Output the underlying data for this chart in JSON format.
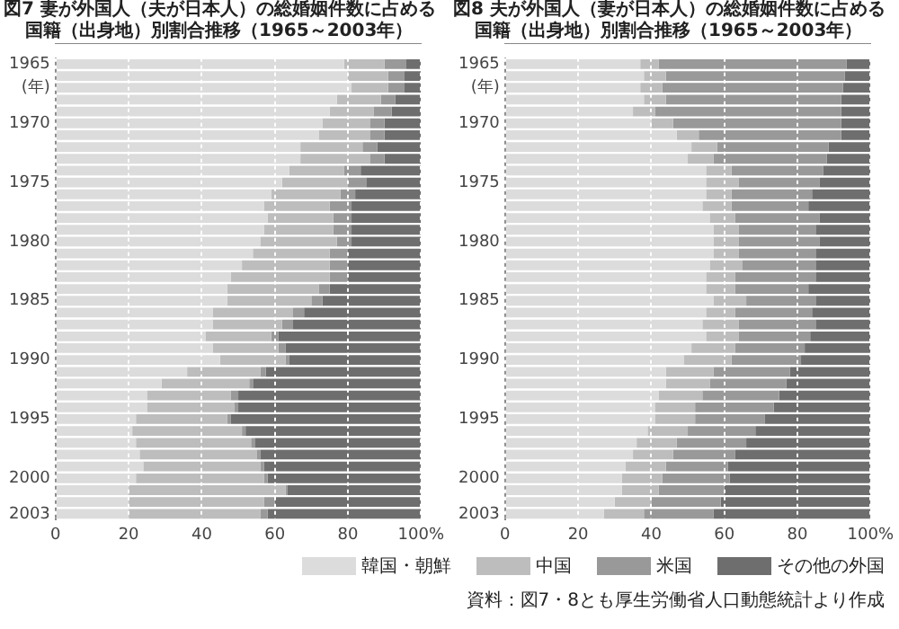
{
  "chart_data": [
    {
      "type": "bar",
      "orientation": "horizontal",
      "stacked": true,
      "title": "図7 妻が外国人（夫が日本人）の総婚姻件数に占める",
      "subtitle": "国籍（出身地）別割合推移（1965～2003年）",
      "categories": [
        "1965",
        null,
        "(年)",
        null,
        null,
        "1970",
        null,
        null,
        null,
        null,
        "1975",
        null,
        null,
        null,
        null,
        "1980",
        null,
        null,
        null,
        null,
        "1985",
        null,
        null,
        null,
        null,
        "1990",
        null,
        null,
        null,
        null,
        "1995",
        null,
        null,
        null,
        null,
        "2000",
        null,
        null,
        "2003"
      ],
      "series": [
        {
          "name": "韓国・朝鮮",
          "color": "#dcdcdc",
          "values": [
            79,
            80,
            81,
            77,
            75,
            73,
            72,
            67,
            67,
            64,
            62,
            59,
            57,
            58,
            57,
            56,
            54,
            51,
            48,
            47,
            47,
            43,
            43,
            41,
            43,
            45,
            36,
            29,
            25,
            25,
            22,
            21,
            22,
            23,
            24,
            22,
            20,
            20,
            20
          ]
        },
        {
          "name": "中国",
          "color": "#bdbdbd",
          "values": [
            11,
            11,
            10,
            12,
            12,
            13,
            14,
            17,
            19,
            15,
            18,
            19,
            18,
            18,
            19,
            21,
            21,
            24,
            27,
            25,
            23,
            22,
            19,
            18,
            18,
            18,
            20,
            24,
            23,
            24,
            25,
            30,
            31.5,
            32,
            32,
            35,
            43,
            37,
            36
          ]
        },
        {
          "name": "米国",
          "color": "#999999",
          "values": [
            6,
            4.5,
            4.5,
            4,
            5,
            4,
            4,
            4,
            4,
            4.5,
            5,
            4,
            6,
            5,
            5,
            4,
            5,
            5,
            5,
            3,
            3,
            3,
            3,
            2,
            2,
            1,
            1.5,
            1,
            2,
            1,
            1,
            1,
            1,
            1,
            1,
            1,
            0.5,
            3,
            2
          ]
        },
        {
          "name": "その他の外国",
          "color": "#6e6e6e",
          "values": [
            4,
            4.5,
            4.5,
            7,
            8,
            10,
            10,
            12,
            10,
            16.5,
            15,
            18,
            19,
            19,
            19,
            19,
            20,
            20,
            20,
            25,
            27,
            32,
            35,
            39,
            37,
            36,
            42.5,
            46,
            50,
            50,
            52,
            48,
            45.5,
            44,
            43,
            42,
            36.5,
            40,
            42
          ]
        }
      ],
      "xlim": [
        0,
        100
      ],
      "xticks": [
        0,
        20,
        40,
        60,
        80,
        {
          "value": 100,
          "label": "100%"
        }
      ],
      "grid": "x",
      "legend": "bottom"
    },
    {
      "type": "bar",
      "orientation": "horizontal",
      "stacked": true,
      "title": "図8 夫が外国人（妻が日本人）の総婚姻件数に占める",
      "subtitle": "国籍（出身地）別割合推移（1965～2003年）",
      "categories": [
        "1965",
        null,
        "(年)",
        null,
        null,
        "1970",
        null,
        null,
        null,
        null,
        "1975",
        null,
        null,
        null,
        null,
        "1980",
        null,
        null,
        null,
        null,
        "1985",
        null,
        null,
        null,
        null,
        "1990",
        null,
        null,
        null,
        null,
        "1995",
        null,
        null,
        null,
        null,
        "2000",
        null,
        null,
        "2003"
      ],
      "series": [
        {
          "color": "#dcdcdc",
          "values": [
            37,
            38,
            37,
            38,
            35,
            40,
            47,
            51,
            50,
            55,
            55,
            55,
            54,
            56,
            57,
            57,
            57,
            56,
            55,
            55,
            57,
            55,
            54,
            55,
            51,
            49,
            44,
            44,
            42,
            41,
            41,
            39,
            36,
            35,
            33,
            32,
            32,
            30,
            27
          ]
        },
        {
          "color": "#bdbdbd",
          "values": [
            5,
            6,
            6,
            6,
            6,
            6,
            6,
            7,
            7,
            7,
            9,
            7,
            8,
            7,
            7,
            7,
            7,
            9,
            8,
            8,
            9,
            8,
            10,
            9,
            12,
            13,
            13,
            12,
            12,
            11,
            11,
            11,
            11,
            11,
            11,
            11,
            10,
            10,
            11
          ]
        },
        {
          "color": "#999999",
          "values": [
            51.5,
            49,
            49.5,
            48,
            51,
            46,
            39,
            30.5,
            31,
            25,
            22,
            22,
            21,
            23,
            21,
            22,
            21,
            20,
            22,
            20,
            19,
            21,
            21,
            19.5,
            19,
            19,
            21,
            21,
            21,
            21.5,
            19,
            18.5,
            19,
            17,
            17,
            18.5,
            18,
            19,
            19
          ]
        },
        {
          "color": "#6e6e6e",
          "values": [
            6.5,
            7,
            7.5,
            8,
            8,
            8,
            8,
            11.5,
            12,
            13,
            14,
            16,
            17,
            14,
            15,
            14,
            15,
            15,
            15,
            17,
            15,
            16,
            15,
            16.5,
            18,
            19,
            22,
            23,
            25,
            26.5,
            29,
            31.5,
            34,
            37,
            39,
            38.5,
            40,
            41,
            43
          ]
        }
      ],
      "xlim": [
        0,
        100
      ],
      "xticks": [
        0,
        20,
        40,
        60,
        80,
        {
          "value": 100,
          "label": "100%"
        }
      ],
      "grid": "x",
      "annotations": [
        "資料：図7・8とも厚生労働省人口動態統計より作成"
      ]
    }
  ]
}
